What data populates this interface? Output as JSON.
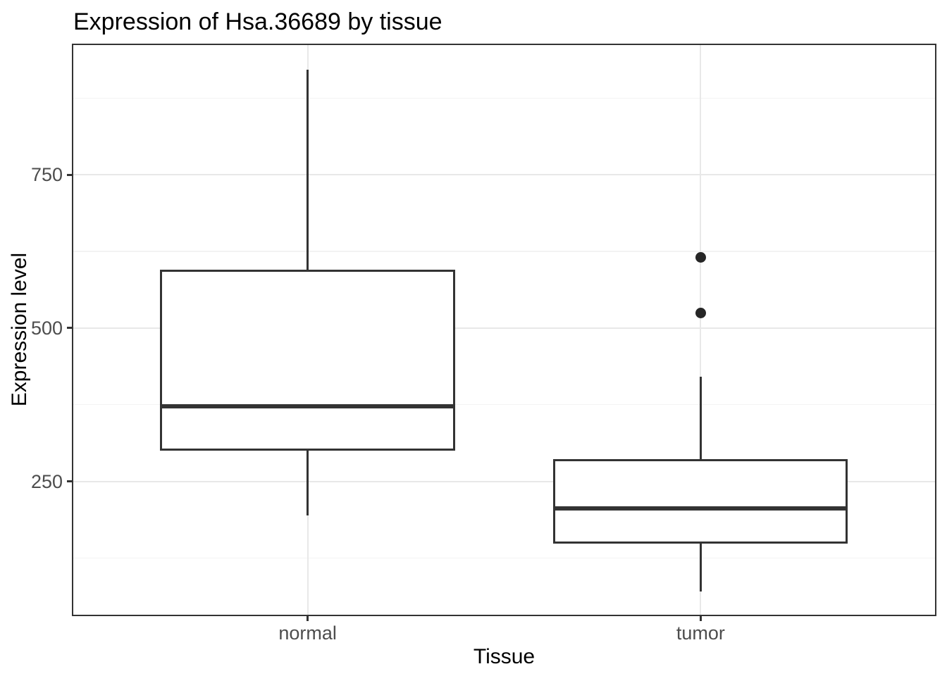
{
  "chart_data": {
    "type": "boxplot",
    "title": "Expression of Hsa.36689 by tissue",
    "xlabel": "Tissue",
    "ylabel": "Expression level",
    "categories": [
      "normal",
      "tumor"
    ],
    "y_ticks": [
      250,
      500,
      750
    ],
    "y_tick_labels": [
      "250",
      "500",
      "750"
    ],
    "y_minor_ticks": [
      125,
      375,
      625,
      875
    ],
    "ylim": [
      30,
      964
    ],
    "grid": "on",
    "legend": "none",
    "series": [
      {
        "category": "normal",
        "whisker_low": 194,
        "q1": 300,
        "median": 372,
        "q3": 595,
        "whisker_high": 922,
        "outliers": []
      },
      {
        "category": "tumor",
        "whisker_low": 70,
        "q1": 148,
        "median": 206,
        "q3": 286,
        "whisker_high": 421,
        "outliers": [
          525,
          615
        ]
      }
    ],
    "colors": {
      "box_line": "#333333",
      "box_fill": "#ffffff",
      "grid_major": "#e8e8e8",
      "grid_minor": "#f3f3f3",
      "panel_border": "#333333",
      "tick_label": "#4d4d4d",
      "title_text": "#000000",
      "background": "#ffffff"
    }
  }
}
